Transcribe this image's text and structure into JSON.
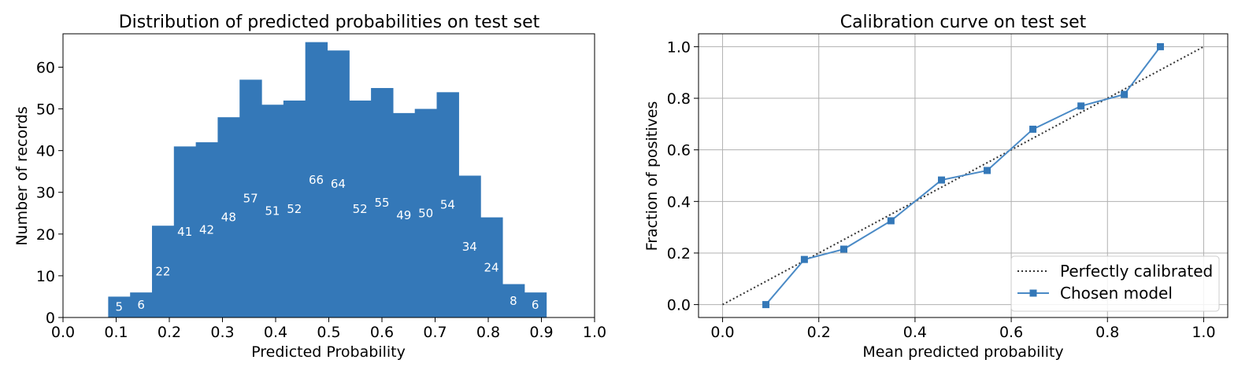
{
  "chart_data": [
    {
      "type": "bar",
      "title": "Distribution of predicted probabilities on test set",
      "xlabel": "Predicted Probability",
      "ylabel": "Number of records",
      "xlim": [
        0.0,
        1.0
      ],
      "ylim": [
        0,
        68
      ],
      "xticks": [
        "0.0",
        "0.1",
        "0.2",
        "0.3",
        "0.4",
        "0.5",
        "0.6",
        "0.7",
        "0.8",
        "0.9",
        "1.0"
      ],
      "yticks": [
        "0",
        "10",
        "20",
        "30",
        "40",
        "50",
        "60"
      ],
      "bin_edges": [
        0.085,
        0.1262,
        0.1674,
        0.2086,
        0.2498,
        0.291,
        0.3322,
        0.3734,
        0.4146,
        0.4558,
        0.497,
        0.5382,
        0.5794,
        0.6206,
        0.6618,
        0.703,
        0.7442,
        0.7854,
        0.8266,
        0.8678,
        0.909
      ],
      "values": [
        5,
        6,
        22,
        41,
        42,
        48,
        57,
        51,
        52,
        66,
        64,
        52,
        55,
        49,
        50,
        54,
        34,
        24,
        8,
        6
      ],
      "grid": false,
      "color": "#3478b8"
    },
    {
      "type": "line",
      "title": "Calibration curve on test set",
      "xlabel": "Mean predicted probability",
      "ylabel": "Fraction of positives",
      "xlim": [
        -0.05,
        1.05
      ],
      "ylim": [
        -0.05,
        1.05
      ],
      "xticks": [
        "0.0",
        "0.2",
        "0.4",
        "0.6",
        "0.8",
        "1.0"
      ],
      "yticks": [
        "0.0",
        "0.2",
        "0.4",
        "0.6",
        "0.8",
        "1.0"
      ],
      "grid": true,
      "legend_position": "bottom-right",
      "series": [
        {
          "name": "Perfectly calibrated",
          "x": [
            0.0,
            1.0
          ],
          "y": [
            0.0,
            1.0
          ],
          "style": "dotted",
          "color": "#333333"
        },
        {
          "name": "Chosen model",
          "x": [
            0.09,
            0.17,
            0.252,
            0.35,
            0.455,
            0.55,
            0.645,
            0.745,
            0.835,
            0.91
          ],
          "y": [
            0.0,
            0.175,
            0.215,
            0.325,
            0.483,
            0.52,
            0.68,
            0.77,
            0.815,
            1.0
          ],
          "style": "solid-square",
          "color": "#4a8ac6"
        }
      ]
    }
  ]
}
